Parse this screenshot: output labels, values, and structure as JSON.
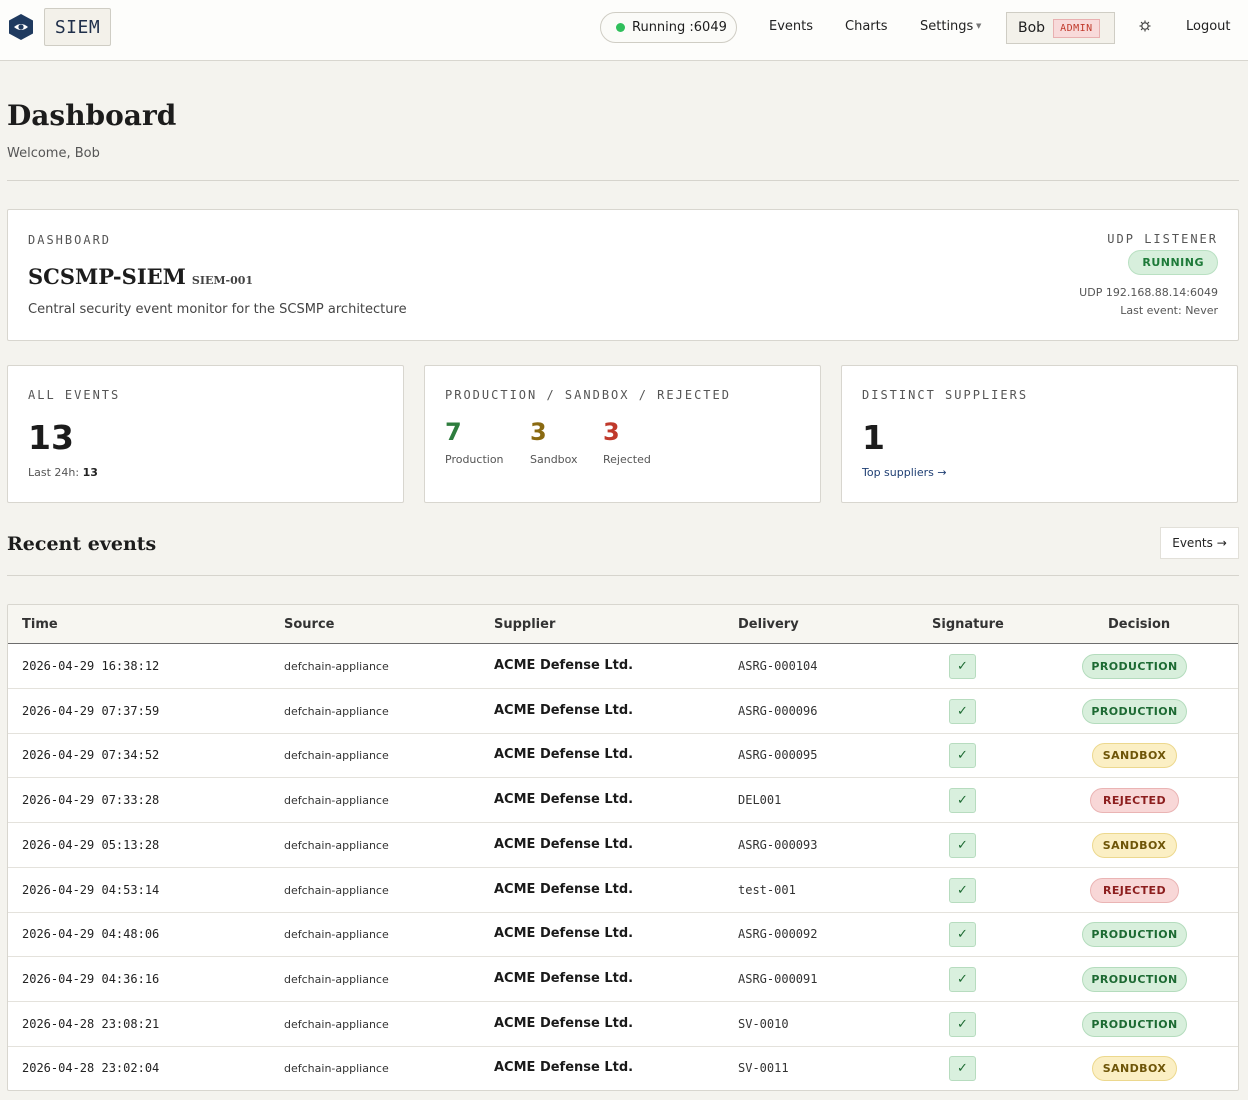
{
  "nav": {
    "brand": "SIEM",
    "status": "Running :6049",
    "items": [
      "Events",
      "Charts",
      "Settings"
    ],
    "user": "Bob",
    "role": "ADMIN",
    "logout": "Logout"
  },
  "header": {
    "title": "Dashboard",
    "welcome": "Welcome, Bob"
  },
  "info": {
    "eyebrow": "DASHBOARD",
    "title": "SCSMP-SIEM",
    "code": "SIEM-001",
    "description": "Central security event monitor for the SCSMP architecture",
    "udp_label": "UDP LISTENER",
    "udp_status": "RUNNING",
    "udp_address": "UDP 192.168.88.14:6049",
    "last_event": "Last event: Never"
  },
  "stats": {
    "all_events": {
      "label": "ALL EVENTS",
      "value": "13",
      "sub_label": "Last 24h:",
      "sub_value": "13"
    },
    "breakdown": {
      "label": "PRODUCTION / SANDBOX / REJECTED",
      "production": "7",
      "production_label": "Production",
      "sandbox": "3",
      "sandbox_label": "Sandbox",
      "rejected": "3",
      "rejected_label": "Rejected"
    },
    "suppliers": {
      "label": "DISTINCT SUPPLIERS",
      "value": "1",
      "link": "Top suppliers →"
    }
  },
  "recent": {
    "title": "Recent events",
    "button": "Events →",
    "columns": [
      "Time",
      "Source",
      "Supplier",
      "Delivery",
      "Signature",
      "Decision"
    ],
    "rows": [
      {
        "time": "2026-04-29 16:38:12",
        "source": "defchain-appliance",
        "supplier": "ACME Defense Ltd.",
        "delivery": "ASRG-000104",
        "signature": "✓",
        "decision": "PRODUCTION"
      },
      {
        "time": "2026-04-29 07:37:59",
        "source": "defchain-appliance",
        "supplier": "ACME Defense Ltd.",
        "delivery": "ASRG-000096",
        "signature": "✓",
        "decision": "PRODUCTION"
      },
      {
        "time": "2026-04-29 07:34:52",
        "source": "defchain-appliance",
        "supplier": "ACME Defense Ltd.",
        "delivery": "ASRG-000095",
        "signature": "✓",
        "decision": "SANDBOX"
      },
      {
        "time": "2026-04-29 07:33:28",
        "source": "defchain-appliance",
        "supplier": "ACME Defense Ltd.",
        "delivery": "DEL001",
        "signature": "✓",
        "decision": "REJECTED"
      },
      {
        "time": "2026-04-29 05:13:28",
        "source": "defchain-appliance",
        "supplier": "ACME Defense Ltd.",
        "delivery": "ASRG-000093",
        "signature": "✓",
        "decision": "SANDBOX"
      },
      {
        "time": "2026-04-29 04:53:14",
        "source": "defchain-appliance",
        "supplier": "ACME Defense Ltd.",
        "delivery": "test-001",
        "signature": "✓",
        "decision": "REJECTED"
      },
      {
        "time": "2026-04-29 04:48:06",
        "source": "defchain-appliance",
        "supplier": "ACME Defense Ltd.",
        "delivery": "ASRG-000092",
        "signature": "✓",
        "decision": "PRODUCTION"
      },
      {
        "time": "2026-04-29 04:36:16",
        "source": "defchain-appliance",
        "supplier": "ACME Defense Ltd.",
        "delivery": "ASRG-000091",
        "signature": "✓",
        "decision": "PRODUCTION"
      },
      {
        "time": "2026-04-28 23:08:21",
        "source": "defchain-appliance",
        "supplier": "ACME Defense Ltd.",
        "delivery": "SV-0010",
        "signature": "✓",
        "decision": "PRODUCTION"
      },
      {
        "time": "2026-04-28 23:02:04",
        "source": "defchain-appliance",
        "supplier": "ACME Defense Ltd.",
        "delivery": "SV-0011",
        "signature": "✓",
        "decision": "SANDBOX"
      }
    ]
  },
  "colors": {
    "production": "#2e7d3e",
    "sandbox": "#8a6a12",
    "rejected": "#c0392b",
    "accent": "#1f3f73"
  },
  "icons": {
    "logo": "eye-hexagon-icon",
    "status": "status-dot-icon",
    "settings_caret": "caret-down-icon",
    "theme": "gear-icon"
  }
}
